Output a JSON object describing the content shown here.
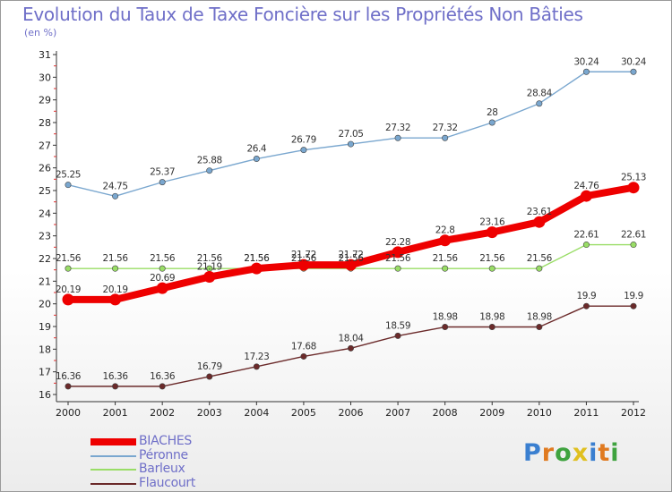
{
  "header": {
    "title": "Evolution du Taux de Taxe Foncière sur les Propriétés Non Bâties",
    "unit": "(en %)"
  },
  "colors": {
    "title": "#6f6fc8",
    "BIACHES": "#ee0000",
    "Péronne": "#7aa7cf",
    "Barleux": "#99dd66",
    "Flaucourt": "#6b2a2a"
  },
  "logo": {
    "text": "Proxiti",
    "letters": [
      "P",
      "r",
      "o",
      "x",
      "i",
      "t",
      "i"
    ],
    "letter_colors": [
      "#3a7fd0",
      "#e07a20",
      "#3fa33f",
      "#e0c020",
      "#3a7fd0",
      "#e07a20",
      "#3fa33f"
    ]
  },
  "chart_data": {
    "type": "line",
    "title": "Evolution du Taux de Taxe Foncière sur les Propriétés Non Bâties",
    "ylabel": "(en %)",
    "x": [
      "2000",
      "2001",
      "2002",
      "2003",
      "2004",
      "2005",
      "2006",
      "2007",
      "2008",
      "2009",
      "2010",
      "2011",
      "2012"
    ],
    "ylim": [
      16,
      31
    ],
    "yticks": [
      16,
      17,
      18,
      19,
      20,
      21,
      22,
      23,
      24,
      25,
      26,
      27,
      28,
      29,
      30,
      31
    ],
    "grid": false,
    "legend_position": "bottom-left",
    "series": [
      {
        "name": "Péronne",
        "color": "#7aa7cf",
        "values": [
          25.25,
          24.75,
          25.37,
          25.88,
          26.4,
          26.79,
          27.05,
          27.32,
          27.32,
          28,
          28.84,
          30.24,
          30.24
        ],
        "labels": [
          "25.25",
          "24.75",
          "25.37",
          "25.88",
          "26.4",
          "26.79",
          "27.05",
          "27.32",
          "27.32",
          "28",
          "28.84",
          "30.24",
          "30.24"
        ]
      },
      {
        "name": "Barleux",
        "color": "#99dd66",
        "values": [
          21.56,
          21.56,
          21.56,
          21.56,
          21.56,
          21.56,
          21.56,
          21.56,
          21.56,
          21.56,
          21.56,
          22.61,
          22.61
        ],
        "labels": [
          "21.56",
          "21.56",
          "21.56",
          "21.56",
          "21.56",
          "21.56",
          "21.56",
          "21.56",
          "21.56",
          "21.56",
          "21.56",
          "22.61",
          "22.61"
        ]
      },
      {
        "name": "Flaucourt",
        "color": "#6b2a2a",
        "values": [
          16.36,
          16.36,
          16.36,
          16.79,
          17.23,
          17.68,
          18.04,
          18.59,
          18.98,
          18.98,
          18.98,
          19.9,
          19.9
        ],
        "labels": [
          "16.36",
          "16.36",
          "16.36",
          "16.79",
          "17.23",
          "17.68",
          "18.04",
          "18.59",
          "18.98",
          "18.98",
          "18.98",
          "19.9",
          "19.9"
        ]
      },
      {
        "name": "BIACHES",
        "color": "#ee0000",
        "values": [
          20.19,
          20.19,
          20.69,
          21.19,
          21.56,
          21.72,
          21.72,
          22.28,
          22.8,
          23.16,
          23.61,
          24.76,
          25.13
        ],
        "labels": [
          "20.19",
          "20.19",
          "20.69",
          "21.19",
          "21.56",
          "21.72",
          "21.72",
          "22.28",
          "22.8",
          "23.16",
          "23.61",
          "24.76",
          "25.13"
        ]
      }
    ],
    "legend": [
      "BIACHES",
      "Péronne",
      "Barleux",
      "Flaucourt"
    ]
  }
}
